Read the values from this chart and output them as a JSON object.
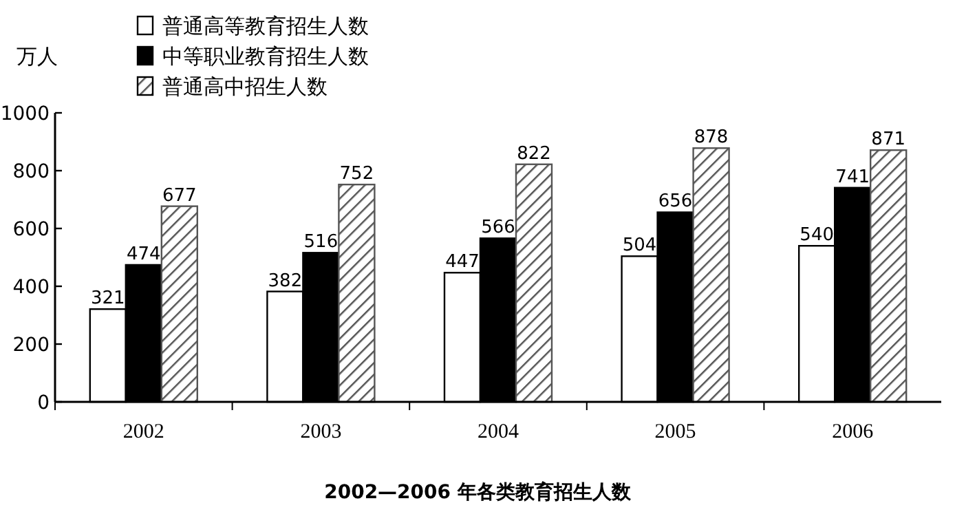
{
  "chart_data": {
    "type": "bar",
    "title": "2002—2006 年各类教育招生人数",
    "ylabel": "万人",
    "categories": [
      "2002",
      "2003",
      "2004",
      "2005",
      "2006"
    ],
    "series": [
      {
        "name": "普通高等教育招生人数",
        "color": "#ffffff",
        "values": [
          321,
          382,
          447,
          504,
          540
        ]
      },
      {
        "name": "中等职业教育招生人数",
        "color": "#000000",
        "values": [
          474,
          516,
          566,
          656,
          741
        ]
      },
      {
        "name": "普通高中招生人数",
        "color": "#555555",
        "values": [
          677,
          752,
          822,
          878,
          871
        ]
      }
    ],
    "ylim": [
      0,
      1000
    ],
    "yticks": [
      0,
      200,
      400,
      600,
      800,
      1000
    ],
    "data_labels": true,
    "legend": "top",
    "grid": false
  }
}
